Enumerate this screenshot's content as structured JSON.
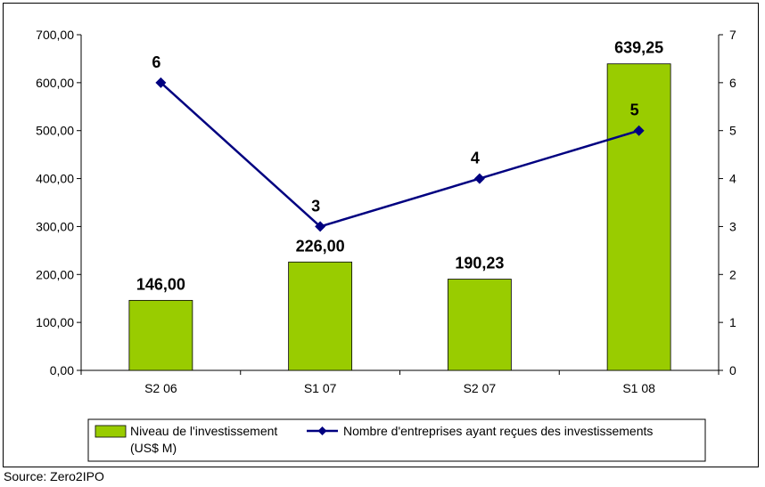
{
  "chart_data": {
    "type": "bar",
    "categories": [
      "S2 06",
      "S1 07",
      "S2 07",
      "S1 08"
    ],
    "series": [
      {
        "name": "Niveau de l'investissement (US$ M)",
        "type": "bar",
        "axis": "left",
        "values": [
          146.0,
          226.0,
          190.23,
          639.25
        ],
        "labels": [
          "146,00",
          "226,00",
          "190,23",
          "639,25"
        ],
        "color": "#99CC00"
      },
      {
        "name": "Nombre d'entreprises ayant reçues des investissements",
        "type": "line",
        "axis": "right",
        "values": [
          6,
          3,
          4,
          5
        ],
        "labels": [
          "6",
          "3",
          "4",
          "5"
        ],
        "color": "#000080"
      }
    ],
    "y_left": {
      "lim": [
        0,
        700
      ],
      "ticks": [
        "0,00",
        "100,00",
        "200,00",
        "300,00",
        "400,00",
        "500,00",
        "600,00",
        "700,00"
      ]
    },
    "y_right": {
      "lim": [
        0,
        7
      ],
      "ticks": [
        "0",
        "1",
        "2",
        "3",
        "4",
        "5",
        "6",
        "7"
      ]
    },
    "legend": {
      "placement": "bottom",
      "bar_label_line1": "Niveau de l'investissement",
      "bar_label_line2": "(US$ M)",
      "line_label": "Nombre d'entreprises ayant reçues des investissements"
    },
    "grid": false
  },
  "source": "Source: Zero2IPO"
}
